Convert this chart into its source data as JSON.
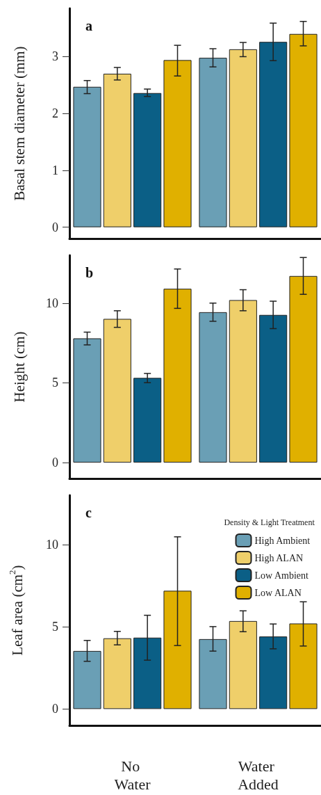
{
  "chart_data": [
    {
      "type": "bar",
      "title": "a",
      "ylabel": "Basal stem diameter (mm)",
      "categories": [
        "No Water",
        "Water Added"
      ],
      "ylim": [
        -0.2,
        3.85
      ],
      "yticks": [
        0,
        1,
        2,
        3
      ],
      "grid": false,
      "legend": false,
      "tick_labels": "y",
      "series": [
        {
          "color": "#6a9fb5",
          "values": [
            2.47,
            2.98
          ],
          "errors": [
            [
              2.35,
              2.58
            ],
            [
              2.82,
              3.14
            ]
          ]
        },
        {
          "color": "#efcf6a",
          "values": [
            2.7,
            3.13
          ],
          "errors": [
            [
              2.59,
              2.81
            ],
            [
              3.0,
              3.25
            ]
          ]
        },
        {
          "color": "#0b5f86",
          "values": [
            2.36,
            3.26
          ],
          "errors": [
            [
              2.3,
              2.43
            ],
            [
              2.93,
              3.59
            ]
          ]
        },
        {
          "color": "#e0b000",
          "values": [
            2.94,
            3.4
          ],
          "errors": [
            [
              2.66,
              3.2
            ],
            [
              3.19,
              3.62
            ]
          ]
        }
      ]
    },
    {
      "type": "bar",
      "title": "b",
      "ylabel": "Height (cm)",
      "categories": [
        "No Water",
        "Water Added"
      ],
      "ylim": [
        -1,
        13
      ],
      "yticks": [
        0,
        5,
        10
      ],
      "grid": false,
      "legend": false,
      "tick_labels": "y",
      "series": [
        {
          "color": "#6a9fb5",
          "values": [
            7.79,
            9.43
          ],
          "errors": [
            [
              7.38,
              8.18
            ],
            [
              8.86,
              10.0
            ]
          ]
        },
        {
          "color": "#efcf6a",
          "values": [
            9.01,
            10.19
          ],
          "errors": [
            [
              8.48,
              9.52
            ],
            [
              9.52,
              10.84
            ]
          ]
        },
        {
          "color": "#0b5f86",
          "values": [
            5.31,
            9.26
          ],
          "errors": [
            [
              5.01,
              5.59
            ],
            [
              8.4,
              10.12
            ]
          ]
        },
        {
          "color": "#e0b000",
          "values": [
            10.9,
            11.7
          ],
          "errors": [
            [
              9.67,
              12.14
            ],
            [
              10.55,
              12.86
            ]
          ]
        }
      ]
    },
    {
      "type": "bar",
      "title": "c",
      "ylabel": "Leaf area (cm$^{2}$)",
      "legend_title": "Density & Light Treatment",
      "categories": [
        "No Water",
        "Water Added"
      ],
      "ylim": [
        -1,
        13
      ],
      "yticks": [
        0,
        5,
        10
      ],
      "grid": false,
      "legend": "top right",
      "series": [
        {
          "name": "High Ambient",
          "color": "#6a9fb5",
          "values": [
            3.53,
            4.25
          ],
          "errors": [
            [
              2.9,
              4.17
            ],
            [
              3.52,
              5.01
            ]
          ]
        },
        {
          "name": "High ALAN",
          "color": "#efcf6a",
          "values": [
            4.3,
            5.35
          ],
          "errors": [
            [
              3.9,
              4.72
            ],
            [
              4.7,
              5.97
            ]
          ]
        },
        {
          "name": "Low Ambient",
          "color": "#0b5f86",
          "values": [
            4.34,
            4.41
          ],
          "errors": [
            [
              2.97,
              5.7
            ],
            [
              3.66,
              5.17
            ]
          ]
        },
        {
          "name": "Low ALAN",
          "color": "#e0b000",
          "values": [
            7.19,
            5.2
          ],
          "errors": [
            [
              3.86,
              10.47
            ],
            [
              3.83,
              6.52
            ]
          ]
        }
      ]
    }
  ]
}
